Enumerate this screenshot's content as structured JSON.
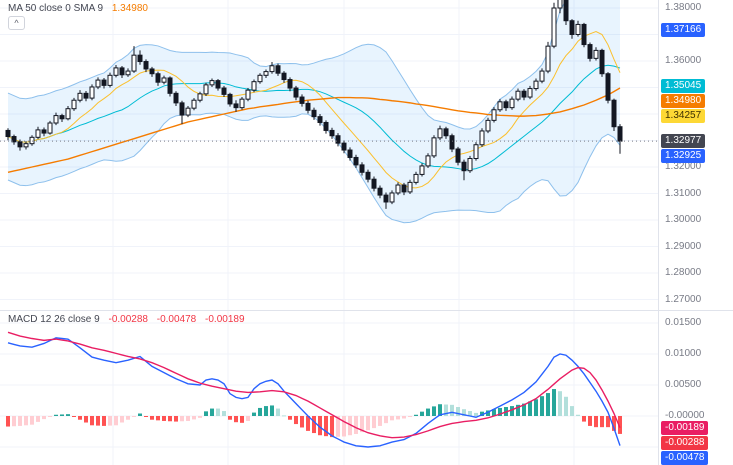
{
  "price_pane": {
    "legend": {
      "title": "MA 50 close 0 SMA 9",
      "value": "1.34980"
    }
  },
  "macd_pane": {
    "legend": {
      "title": "MACD 12 26 close 9",
      "values": [
        "-0.00288",
        "-0.00478",
        "-0.00189"
      ]
    }
  },
  "controls": {
    "collapse_arrow": "^"
  },
  "colors": {
    "background": "#ffffff",
    "grid": "#f0f3fa",
    "separator": "#e0e3eb",
    "axis_text": "#787b86",
    "candle_up_fill": "#ffffff",
    "candle_down_fill": "#131722",
    "candle_border": "#131722",
    "bb_fill": "rgba(33,150,243,0.10)",
    "bb_line": "#8ec0ec",
    "bb_basis": "#00bcd4",
    "ma50": "#f57c00",
    "sma9": "#fbc02d",
    "macd_line": "#2962ff",
    "signal_line": "#e91e63",
    "hist_up_grow": "#26a69a",
    "hist_up_fall": "#b2dfdb",
    "hist_down_grow": "#ff5252",
    "hist_down_fall": "#ffcdd2",
    "last_price": "#787b86",
    "legend_text": "#434651",
    "legend_value_neg": "#f23645"
  },
  "price_axis": {
    "ticks": [
      {
        "label": "1.38000",
        "value": 1.38
      },
      {
        "label": "1.36000",
        "value": 1.36
      },
      {
        "label": "1.34000",
        "value": 1.34
      },
      {
        "label": "1.32000",
        "value": 1.32
      },
      {
        "label": "1.31000",
        "value": 1.31
      },
      {
        "label": "1.30000",
        "value": 1.3
      },
      {
        "label": "1.29000",
        "value": 1.29
      },
      {
        "label": "1.28000",
        "value": 1.28
      },
      {
        "label": "1.27000",
        "value": 1.27
      }
    ],
    "badges": [
      {
        "label": "1.37166",
        "value": 1.37166,
        "bg": "#2962ff",
        "fg": "#ffffff",
        "name": "bb-upper-badge"
      },
      {
        "label": "1.35045",
        "value": 1.35045,
        "bg": "#00bcd4",
        "fg": "#ffffff",
        "name": "bb-basis-badge"
      },
      {
        "label": "1.34980",
        "value": 1.3498,
        "bg": "#f57c00",
        "fg": "#ffffff",
        "name": "ma50-badge"
      },
      {
        "label": "1.34257",
        "value": 1.34257,
        "bg": "#fdd835",
        "fg": "#3d3000",
        "name": "sma9-badge"
      },
      {
        "label": "1.32977",
        "value": 1.32977,
        "bg": "#434651",
        "fg": "#ffffff",
        "name": "last-price-badge"
      },
      {
        "label": "1.32925",
        "value": 1.32925,
        "bg": "#2962ff",
        "fg": "#ffffff",
        "name": "bb-lower-badge"
      }
    ]
  },
  "macd_axis": {
    "ticks": [
      {
        "label": "0.01500",
        "value": 0.015
      },
      {
        "label": "0.01000",
        "value": 0.01
      },
      {
        "label": "0.00500",
        "value": 0.005
      },
      {
        "label": "-0.00000",
        "value": 0
      }
    ],
    "badges": [
      {
        "label": "-0.00189",
        "value": -0.00189,
        "bg": "#e91e63",
        "fg": "#ffffff",
        "name": "signal-badge"
      },
      {
        "label": "-0.00288",
        "value": -0.00288,
        "bg": "#f23645",
        "fg": "#ffffff",
        "name": "histogram-badge"
      },
      {
        "label": "-0.00478",
        "value": -0.00478,
        "bg": "#2962ff",
        "fg": "#ffffff",
        "name": "macd-badge"
      }
    ]
  },
  "chart_data": [
    {
      "type": "candlestick",
      "pane": "price",
      "ylim": [
        1.268,
        1.385
      ],
      "indicators": [
        "Bollinger Bands",
        "MA 50 (1.34980)",
        "SMA 9"
      ],
      "candles": [
        [
          1.3338,
          1.3346,
          1.3301,
          1.3315
        ],
        [
          1.3315,
          1.3322,
          1.3284,
          1.3295
        ],
        [
          1.3295,
          1.3304,
          1.3262,
          1.3276
        ],
        [
          1.3276,
          1.3297,
          1.3266,
          1.3288
        ],
        [
          1.3288,
          1.332,
          1.328,
          1.3312
        ],
        [
          1.3312,
          1.3352,
          1.3305,
          1.334
        ],
        [
          1.334,
          1.3349,
          1.3316,
          1.3328
        ],
        [
          1.3328,
          1.3374,
          1.3322,
          1.3366
        ],
        [
          1.3366,
          1.3405,
          1.3358,
          1.3394
        ],
        [
          1.3394,
          1.3401,
          1.337,
          1.3382
        ],
        [
          1.3382,
          1.343,
          1.3376,
          1.342
        ],
        [
          1.342,
          1.3461,
          1.3412,
          1.3452
        ],
        [
          1.3452,
          1.349,
          1.3444,
          1.3478
        ],
        [
          1.3478,
          1.3487,
          1.3448,
          1.346
        ],
        [
          1.346,
          1.3512,
          1.3452,
          1.3502
        ],
        [
          1.3502,
          1.3538,
          1.3494,
          1.3528
        ],
        [
          1.3528,
          1.3536,
          1.3496,
          1.3508
        ],
        [
          1.3508,
          1.3556,
          1.35,
          1.3546
        ],
        [
          1.3546,
          1.3585,
          1.3538,
          1.3574
        ],
        [
          1.3574,
          1.3581,
          1.3536,
          1.3548
        ],
        [
          1.3548,
          1.3572,
          1.354,
          1.3562
        ],
        [
          1.3562,
          1.3656,
          1.3555,
          1.3622
        ],
        [
          1.3622,
          1.364,
          1.3586,
          1.3598
        ],
        [
          1.3598,
          1.3606,
          1.3558,
          1.357
        ],
        [
          1.357,
          1.3578,
          1.354,
          1.3552
        ],
        [
          1.3552,
          1.356,
          1.3506,
          1.352
        ],
        [
          1.352,
          1.3545,
          1.3512,
          1.3536
        ],
        [
          1.3536,
          1.3542,
          1.3466,
          1.3478
        ],
        [
          1.3478,
          1.3486,
          1.343,
          1.3442
        ],
        [
          1.3442,
          1.345,
          1.3362,
          1.3396
        ],
        [
          1.3396,
          1.343,
          1.3388,
          1.3422
        ],
        [
          1.3422,
          1.346,
          1.3414,
          1.3452
        ],
        [
          1.3452,
          1.3484,
          1.3444,
          1.3476
        ],
        [
          1.3476,
          1.3518,
          1.3468,
          1.351
        ],
        [
          1.351,
          1.3534,
          1.3502,
          1.3526
        ],
        [
          1.3526,
          1.3532,
          1.3488,
          1.3498
        ],
        [
          1.3498,
          1.3506,
          1.3464,
          1.3474
        ],
        [
          1.3474,
          1.348,
          1.3428,
          1.3438
        ],
        [
          1.3438,
          1.3452,
          1.3408,
          1.3424
        ],
        [
          1.3424,
          1.3464,
          1.3416,
          1.3456
        ],
        [
          1.3456,
          1.3498,
          1.3448,
          1.349
        ],
        [
          1.349,
          1.353,
          1.3482,
          1.3522
        ],
        [
          1.3522,
          1.3554,
          1.3514,
          1.3546
        ],
        [
          1.3546,
          1.3568,
          1.3536,
          1.356
        ],
        [
          1.356,
          1.3596,
          1.3552,
          1.3582
        ],
        [
          1.3582,
          1.359,
          1.3544,
          1.3554
        ],
        [
          1.3554,
          1.3562,
          1.3518,
          1.353
        ],
        [
          1.353,
          1.3538,
          1.3486,
          1.3498
        ],
        [
          1.3498,
          1.3506,
          1.3452,
          1.3464
        ],
        [
          1.3464,
          1.3474,
          1.3428,
          1.344
        ],
        [
          1.344,
          1.345,
          1.3402,
          1.3414
        ],
        [
          1.3414,
          1.3424,
          1.3378,
          1.339
        ],
        [
          1.339,
          1.34,
          1.3356,
          1.3368
        ],
        [
          1.3368,
          1.3376,
          1.3326,
          1.3338
        ],
        [
          1.3338,
          1.3348,
          1.3306,
          1.3318
        ],
        [
          1.3318,
          1.3328,
          1.3278,
          1.329
        ],
        [
          1.329,
          1.33,
          1.3252,
          1.3264
        ],
        [
          1.3264,
          1.3274,
          1.3224,
          1.3236
        ],
        [
          1.3236,
          1.3246,
          1.3196,
          1.3208
        ],
        [
          1.3208,
          1.3218,
          1.3168,
          1.318
        ],
        [
          1.318,
          1.319,
          1.3142,
          1.3154
        ],
        [
          1.3154,
          1.3164,
          1.3108,
          1.312
        ],
        [
          1.312,
          1.313,
          1.3082,
          1.3094
        ],
        [
          1.3094,
          1.3104,
          1.3042,
          1.3068
        ],
        [
          1.3068,
          1.3112,
          1.306,
          1.3102
        ],
        [
          1.3102,
          1.3142,
          1.3094,
          1.3132
        ],
        [
          1.3132,
          1.314,
          1.3094,
          1.3106
        ],
        [
          1.3106,
          1.3152,
          1.3098,
          1.3142
        ],
        [
          1.3142,
          1.3182,
          1.3134,
          1.3172
        ],
        [
          1.3172,
          1.3214,
          1.3164,
          1.3204
        ],
        [
          1.3204,
          1.3252,
          1.3196,
          1.3242
        ],
        [
          1.3242,
          1.332,
          1.3234,
          1.331
        ],
        [
          1.331,
          1.3356,
          1.3302,
          1.3344
        ],
        [
          1.3344,
          1.3352,
          1.3306,
          1.3318
        ],
        [
          1.3318,
          1.3326,
          1.3256,
          1.3268
        ],
        [
          1.3268,
          1.3276,
          1.3206,
          1.3218
        ],
        [
          1.3218,
          1.3228,
          1.315,
          1.3186
        ],
        [
          1.3186,
          1.3242,
          1.3178,
          1.3232
        ],
        [
          1.3232,
          1.3294,
          1.3224,
          1.3284
        ],
        [
          1.3284,
          1.3346,
          1.3276,
          1.3336
        ],
        [
          1.3336,
          1.3386,
          1.3328,
          1.3376
        ],
        [
          1.3376,
          1.3426,
          1.3368,
          1.3416
        ],
        [
          1.3416,
          1.3456,
          1.3408,
          1.3446
        ],
        [
          1.3446,
          1.3454,
          1.3412,
          1.3424
        ],
        [
          1.3424,
          1.3466,
          1.3416,
          1.3456
        ],
        [
          1.3456,
          1.3496,
          1.3448,
          1.3486
        ],
        [
          1.3486,
          1.3494,
          1.3452,
          1.3464
        ],
        [
          1.3464,
          1.3506,
          1.3456,
          1.3496
        ],
        [
          1.3496,
          1.3534,
          1.3488,
          1.3524
        ],
        [
          1.3524,
          1.3572,
          1.3516,
          1.3562
        ],
        [
          1.3562,
          1.3672,
          1.3554,
          1.3656
        ],
        [
          1.3656,
          1.382,
          1.3648,
          1.38
        ],
        [
          1.38,
          1.3875,
          1.378,
          1.3844
        ],
        [
          1.3844,
          1.3852,
          1.3736,
          1.3752
        ],
        [
          1.3752,
          1.3758,
          1.3684,
          1.37
        ],
        [
          1.37,
          1.3752,
          1.3692,
          1.3738
        ],
        [
          1.3738,
          1.3744,
          1.3652,
          1.3662
        ],
        [
          1.3662,
          1.367,
          1.3598,
          1.361
        ],
        [
          1.361,
          1.3652,
          1.3602,
          1.364
        ],
        [
          1.364,
          1.3646,
          1.354,
          1.3552
        ],
        [
          1.3552,
          1.3558,
          1.344,
          1.3452
        ],
        [
          1.3452,
          1.3458,
          1.3336,
          1.3352
        ],
        [
          1.3352,
          1.3362,
          1.325,
          1.32977
        ]
      ],
      "ma50": [
        1.318,
        1.3185,
        1.319,
        1.3195,
        1.32,
        1.3205,
        1.321,
        1.3215,
        1.322,
        1.3225,
        1.323,
        1.3237,
        1.3244,
        1.3251,
        1.3258,
        1.3265,
        1.3272,
        1.3279,
        1.3286,
        1.3293,
        1.33,
        1.3307,
        1.3314,
        1.3321,
        1.3328,
        1.3335,
        1.3342,
        1.3349,
        1.3356,
        1.3363,
        1.337,
        1.3375,
        1.338,
        1.3385,
        1.339,
        1.3395,
        1.34,
        1.3405,
        1.341,
        1.3415,
        1.342,
        1.3423,
        1.3427,
        1.343,
        1.3433,
        1.3436,
        1.344,
        1.3443,
        1.3446,
        1.3449,
        1.3452,
        1.3454,
        1.3456,
        1.3458,
        1.346,
        1.3462,
        1.3462,
        1.3462,
        1.3461,
        1.3461,
        1.346,
        1.3458,
        1.3455,
        1.3453,
        1.345,
        1.3448,
        1.3445,
        1.3442,
        1.3438,
        1.3435,
        1.3432,
        1.3428,
        1.3424,
        1.342,
        1.3416,
        1.3412,
        1.3409,
        1.3406,
        1.3404,
        1.3401,
        1.3398,
        1.3397,
        1.3395,
        1.3394,
        1.3393,
        1.3392,
        1.3392,
        1.3393,
        1.3394,
        1.3397,
        1.34,
        1.3404,
        1.3408,
        1.3414,
        1.342,
        1.3427,
        1.3434,
        1.3443,
        1.3452,
        1.3462,
        1.3472,
        1.3485,
        1.3498
      ],
      "bollinger": {
        "window": 20,
        "mult": 2
      },
      "sma9_window": 9
    },
    {
      "type": "bar",
      "pane": "macd",
      "title": "MACD 12 26 close 9",
      "ylim": [
        -0.006,
        0.016
      ],
      "macd": [
        0.0118,
        0.01155,
        0.0113,
        0.0112,
        0.0111,
        0.0114,
        0.0117,
        0.01215,
        0.0126,
        0.0125,
        0.0124,
        0.0117,
        0.011,
        0.01025,
        0.0095,
        0.00925,
        0.009,
        0.0088,
        0.0086,
        0.0088,
        0.009,
        0.0093,
        0.0096,
        0.0088,
        0.008,
        0.0075,
        0.007,
        0.0065,
        0.006,
        0.0056,
        0.0052,
        0.0051,
        0.005,
        0.0058,
        0.006,
        0.0058,
        0.0052,
        0.0036,
        0.003,
        0.0028,
        0.003,
        0.0044,
        0.0052,
        0.0056,
        0.0058,
        0.0052,
        0.004,
        0.003,
        0.002,
        0.001,
        0.0,
        -0.0009,
        -0.0018,
        -0.0025,
        -0.0032,
        -0.0037,
        -0.0042,
        -0.0045,
        -0.0048,
        -0.0049,
        -0.005,
        -0.0049,
        -0.0048,
        -0.0045,
        -0.0042,
        -0.004,
        -0.0038,
        -0.0033,
        -0.0028,
        -0.002,
        -0.0012,
        -0.0005,
        0.0002,
        0.0004,
        0.0006,
        0.0004,
        0.0002,
        0.0,
        -0.0002,
        0.0002,
        0.0006,
        0.0011,
        0.0016,
        0.0021,
        0.0026,
        0.0032,
        0.0038,
        0.00465,
        0.0055,
        0.00675,
        0.008,
        0.0095,
        0.01,
        0.0098,
        0.009,
        0.008,
        0.0068,
        0.0054,
        0.004,
        0.0024,
        0.0006,
        -0.002,
        -0.00478
      ],
      "signal": [
        0.0135,
        0.0132,
        0.0129,
        0.0127,
        0.0125,
        0.01235,
        0.0122,
        0.0123,
        0.0124,
        0.01225,
        0.0121,
        0.01185,
        0.0116,
        0.0113,
        0.011,
        0.0108,
        0.0106,
        0.01035,
        0.0101,
        0.00985,
        0.0096,
        0.0094,
        0.0092,
        0.0089,
        0.0086,
        0.0082,
        0.0078,
        0.00735,
        0.0069,
        0.00645,
        0.006,
        0.00565,
        0.0053,
        0.00505,
        0.0048,
        0.0046,
        0.0044,
        0.0042,
        0.004,
        0.0039,
        0.0038,
        0.00385,
        0.0039,
        0.004,
        0.0041,
        0.004,
        0.0039,
        0.0036,
        0.0033,
        0.00285,
        0.0024,
        0.00185,
        0.0013,
        0.00075,
        0.0002,
        -0.00035,
        -0.0009,
        -0.0014,
        -0.0019,
        -0.0023,
        -0.0027,
        -0.00295,
        -0.0032,
        -0.00335,
        -0.0035,
        -0.00345,
        -0.0034,
        -0.0032,
        -0.003,
        -0.0027,
        -0.0024,
        -0.00205,
        -0.0017,
        -0.00145,
        -0.0012,
        -0.00105,
        -0.0009,
        -0.0008,
        -0.0007,
        -0.0005,
        -0.0003,
        0.0,
        0.0003,
        0.00065,
        0.001,
        0.0014,
        0.0018,
        0.0023,
        0.0028,
        0.00355,
        0.0043,
        0.00515,
        0.006,
        0.0067,
        0.0074,
        0.0078,
        0.0077,
        0.007,
        0.0058,
        0.0042,
        0.0024,
        0.0004,
        -0.00189
      ]
    }
  ]
}
